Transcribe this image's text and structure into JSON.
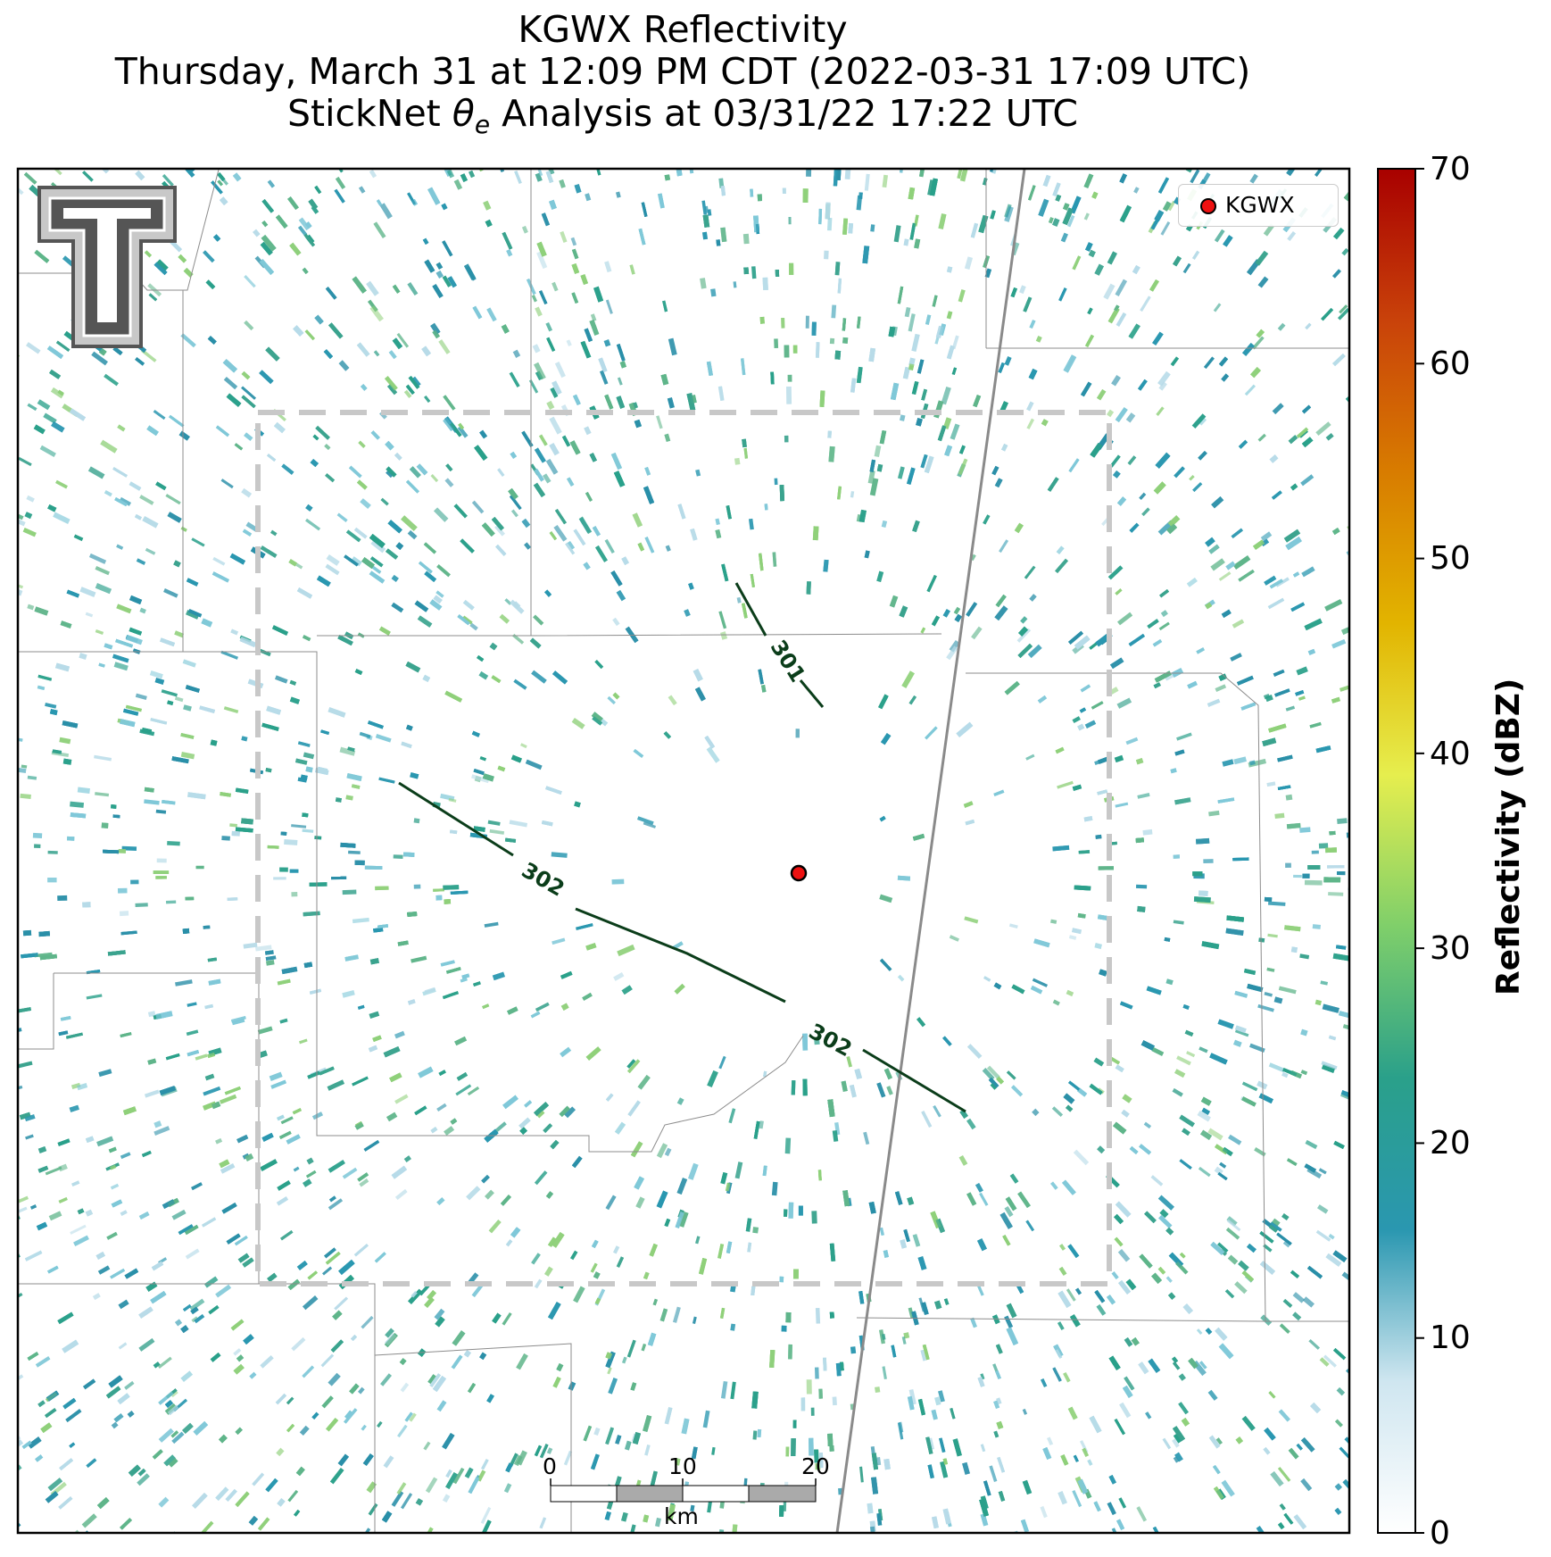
{
  "title": {
    "line1": "KGWX Reflectivity",
    "line2": "Thursday, March 31 at 12:09 PM CDT (2022-03-31 17:09 UTC)",
    "line3_prefix": "StickNet ",
    "line3_theta": "θ",
    "line3_sub": "e",
    "line3_suffix": " Analysis at 03/31/22 17:22 UTC"
  },
  "legend": {
    "label": "KGWX",
    "marker_color": "#ee1111"
  },
  "contours": [
    {
      "label": "301",
      "color": "#0b3d1a"
    },
    {
      "label": "302",
      "color": "#0b3d1a"
    },
    {
      "label": "302",
      "color": "#0b3d1a"
    }
  ],
  "scale_bar": {
    "ticks": [
      "0",
      "10",
      "20"
    ],
    "unit": "km"
  },
  "colorbar": {
    "title": "Reflectivity (dBZ)",
    "min": 0,
    "max": 70,
    "ticks": [
      "70",
      "60",
      "50",
      "40",
      "30",
      "20",
      "10",
      "0"
    ],
    "colors": [
      "#ffffff",
      "#cfe6f0",
      "#2a97b0",
      "#2aa08a",
      "#7fcf6a",
      "#e6ee4e",
      "#e2b400",
      "#d87c00",
      "#c9420a",
      "#a80000"
    ]
  },
  "logo": {
    "text": "T",
    "outline_color": "#555555"
  }
}
